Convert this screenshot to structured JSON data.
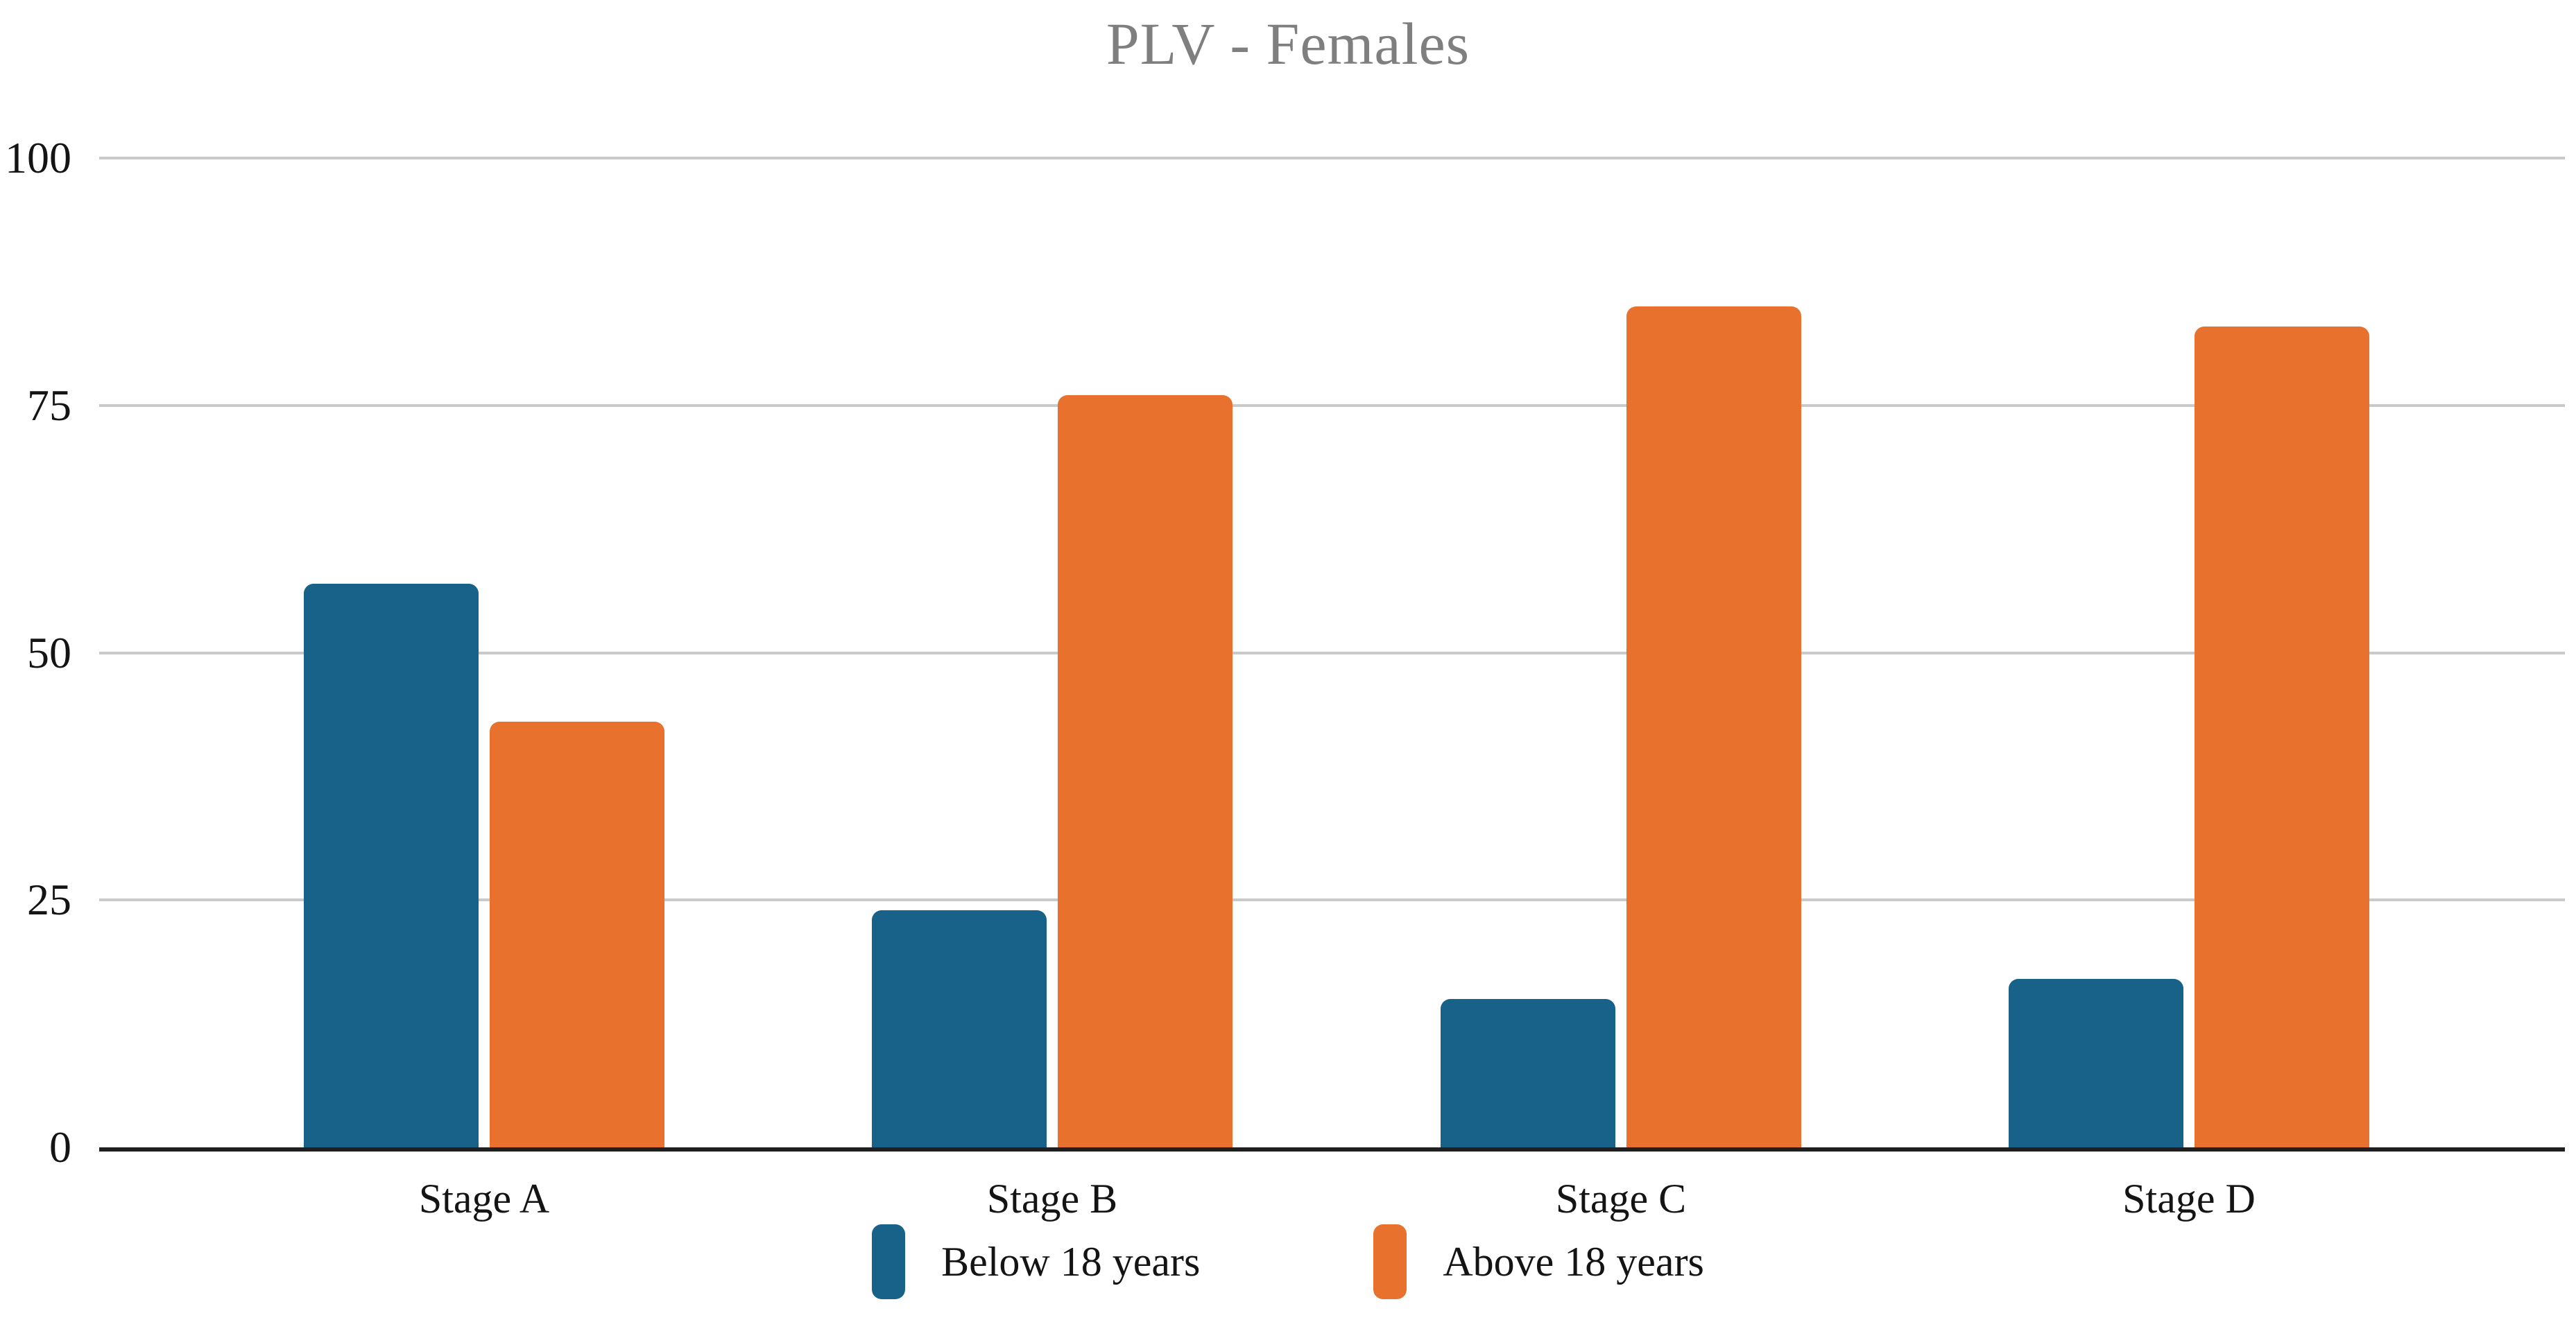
{
  "chart_data": {
    "type": "bar",
    "title": "PLV - Females",
    "categories": [
      "Stage A",
      "Stage B",
      "Stage C",
      "Stage D"
    ],
    "series": [
      {
        "name": "Below 18 years",
        "color": "#186289",
        "values": [
          57,
          24,
          15,
          17
        ]
      },
      {
        "name": "Above 18 years",
        "color": "#E8722D",
        "values": [
          43,
          76,
          85,
          83
        ]
      }
    ],
    "yticks": [
      0,
      25,
      50,
      75,
      100
    ],
    "ylim": [
      0,
      100
    ],
    "xlabel": "",
    "ylabel": "",
    "grid": true,
    "legend_position": "bottom",
    "title_color": "#7f7f7f",
    "gridline_color": "#c9c9c9",
    "axis_color": "#1f1f1f"
  }
}
